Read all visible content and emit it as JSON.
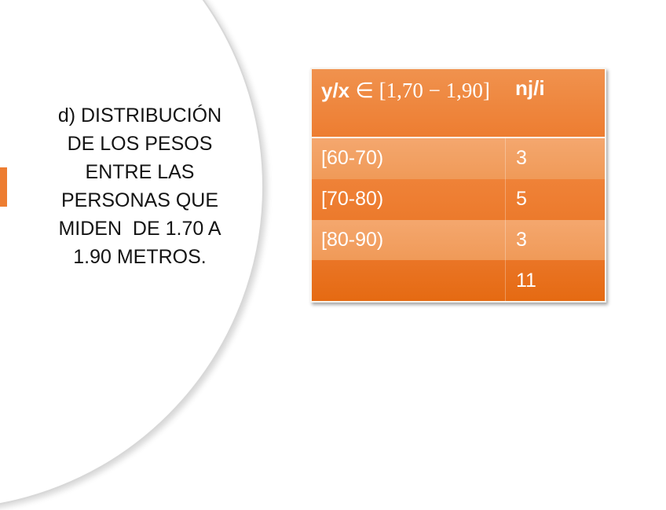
{
  "slide": {
    "title_lines": [
      "d) DISTRIBUCIÓN",
      "DE LOS PESOS",
      "ENTRE LAS",
      "PERSONAS QUE",
      "MIDEN  DE 1.70 A",
      "1.90 METROS."
    ]
  },
  "table": {
    "header": {
      "variable_label": "y/x ",
      "interval_label": "∈  [1,70 − 1,90]",
      "frequency_label": "nj/i"
    },
    "rows": [
      {
        "interval": "[60-70)",
        "frequency": "3"
      },
      {
        "interval": "[70-80)",
        "frequency": "5"
      },
      {
        "interval": "[80-90)",
        "frequency": "3"
      },
      {
        "interval": "",
        "frequency": "11"
      }
    ],
    "total_frequency": "11"
  },
  "colors": {
    "accent_orange": "#ED7D31",
    "band_light": "#F2A266",
    "band_dark": "#EE7D31",
    "band_total": "#E7701E",
    "circle_edge": "#D8D8D8",
    "title_text": "#141414",
    "table_text": "#FFFFFF"
  }
}
